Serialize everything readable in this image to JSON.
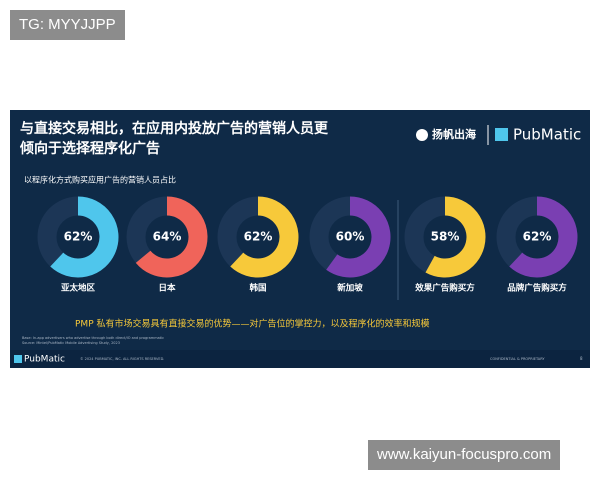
{
  "watermark_top": "TG: MYYJJPP",
  "watermark_bottom": "www.kaiyun-focuspro.com",
  "slide": {
    "title_lines": [
      "与直接交易相比，在应用内投放广告的营销人员更",
      "倾向于选择程序化广告"
    ],
    "logo_left": "扬帆出海",
    "logo_right": "PubMatic",
    "takeaway": "PMP 私有市场交易具有直接交易的优势——对广告位的掌控力，以及程序化的效率和规模",
    "footnote_lines": [
      "Base: In-app advertisers who advertise through both direct/IO and programmatic",
      "Source: Mintel/PubMatic Mobile Advertising Study, 2023"
    ],
    "footer_logo": "PubMatic",
    "copyright": "© 2024 PUBMATIC, INC. ALL RIGHTS RESERVED.",
    "confidential": "CONFIDENTIAL & PROPRIETARY",
    "page": 8
  },
  "chart_data": {
    "type": "donut",
    "subtitle": "以程序化方式购买应用广告的营销人员占比",
    "categories": [
      "亚太地区",
      "日本",
      "韩国",
      "新加坡",
      "效果广告购买方",
      "品牌广告购买方"
    ],
    "values": [
      62,
      64,
      62,
      60,
      58,
      62
    ],
    "value_labels": [
      "62%",
      "64%",
      "62%",
      "60%",
      "58%",
      "62%"
    ],
    "colors": [
      "#4fc6ec",
      "#f0645a",
      "#f7c93a",
      "#7a3fb2",
      "#f7c93a",
      "#7a3fb2"
    ]
  }
}
